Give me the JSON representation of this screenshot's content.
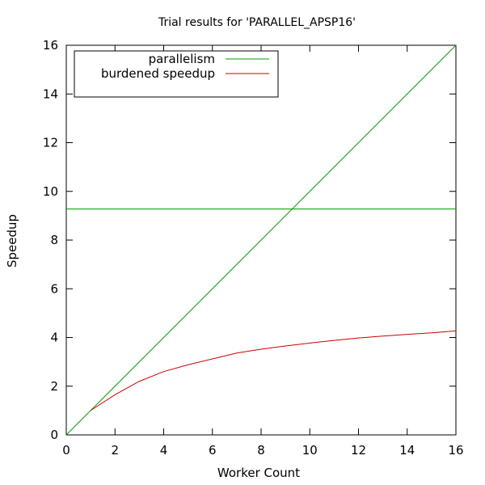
{
  "chart_data": {
    "type": "line",
    "title": "Trial results for 'PARALLEL_APSP16'",
    "xlabel": "Worker Count",
    "ylabel": "Speedup",
    "xlim": [
      0,
      16
    ],
    "ylim": [
      0,
      16
    ],
    "xticks": [
      "0",
      "2",
      "4",
      "6",
      "8",
      "10",
      "12",
      "14",
      "16"
    ],
    "yticks": [
      "0",
      "2",
      "4",
      "6",
      "8",
      "10",
      "12",
      "14",
      "16"
    ],
    "grid": false,
    "legend_position": "top-left",
    "series": [
      {
        "name": "parallelism",
        "color": "#00a000",
        "x": [
          0,
          16
        ],
        "y": [
          0,
          16
        ]
      },
      {
        "name": "parallelism",
        "color": "#00a000",
        "show_in_legend": false,
        "x": [
          0,
          16
        ],
        "y": [
          9.28,
          9.28
        ]
      },
      {
        "name": "burdened speedup",
        "color": "#cc0000",
        "x": [
          1,
          2,
          3,
          4,
          5,
          6,
          7,
          8,
          9,
          10,
          11,
          12,
          13,
          14,
          15,
          16
        ],
        "y": [
          1.0,
          1.65,
          2.2,
          2.6,
          2.88,
          3.12,
          3.36,
          3.52,
          3.65,
          3.77,
          3.88,
          3.98,
          4.06,
          4.13,
          4.19,
          4.27
        ]
      }
    ]
  }
}
